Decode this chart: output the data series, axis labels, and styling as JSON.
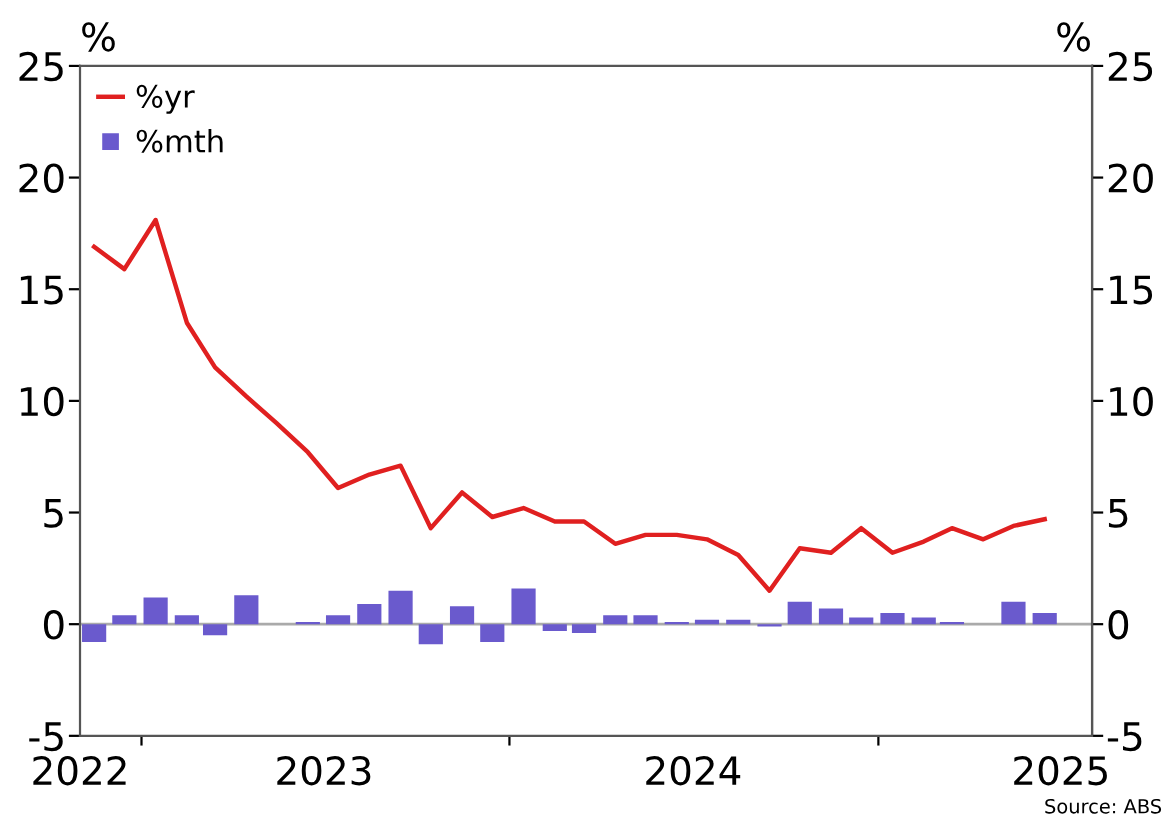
{
  "chart_data": {
    "type": "line",
    "ylabel": "%",
    "y2label": "%",
    "x": [
      "2022-11-15",
      "2022-12-15",
      "2023-01-15",
      "2023-02-15",
      "2023-03-15",
      "2023-04-15",
      "2023-05-15",
      "2023-06-15",
      "2023-07-15",
      "2023-08-15",
      "2023-09-15",
      "2023-10-15",
      "2023-11-15",
      "2023-12-15",
      "2024-01-15",
      "2024-02-15",
      "2024-03-15",
      "2024-04-15",
      "2024-05-15",
      "2024-06-15",
      "2024-07-15",
      "2024-08-15",
      "2024-09-15",
      "2024-10-15",
      "2024-11-15",
      "2024-12-15",
      "2025-01-15",
      "2025-02-15",
      "2025-03-15",
      "2025-04-15",
      "2025-05-15",
      "2025-06-15"
    ],
    "series": [
      {
        "name": "%yr",
        "color": "#e02020",
        "values": [
          16.9,
          15.9,
          18.1,
          13.5,
          11.5,
          10.2,
          9.0,
          7.7,
          6.1,
          6.7,
          7.1,
          4.3,
          5.9,
          4.8,
          5.2,
          4.6,
          4.6,
          3.6,
          4.0,
          4.0,
          3.8,
          3.1,
          1.5,
          3.4,
          3.2,
          4.3,
          3.2,
          3.7,
          4.3,
          3.8,
          4.4,
          4.7
        ]
      },
      {
        "name": "%mth",
        "type": "bar",
        "color": "#6a5acd",
        "values": [
          -0.8,
          0.4,
          1.2,
          0.4,
          -0.5,
          1.3,
          0.0,
          0.1,
          0.4,
          0.9,
          1.5,
          -0.9,
          0.8,
          -0.8,
          1.6,
          -0.3,
          -0.4,
          0.4,
          0.4,
          0.1,
          0.2,
          0.2,
          -0.1,
          1.0,
          0.7,
          0.3,
          0.5,
          0.3,
          0.1,
          0.0,
          1.0,
          0.5
        ]
      }
    ],
    "xlim": [
      "2022-11-01",
      "2025-08-01"
    ],
    "xticks": [
      {
        "value": "2022-11-01",
        "label": "2022"
      },
      {
        "value": "2023-01-01",
        "label": null
      },
      {
        "value": "2023-07-01",
        "label": "2023"
      },
      {
        "value": "2024-01-01",
        "label": null
      },
      {
        "value": "2024-07-01",
        "label": "2024"
      },
      {
        "value": "2025-01-01",
        "label": null
      },
      {
        "value": "2025-07-01",
        "label": "2025"
      }
    ],
    "ylim": [
      -5,
      25
    ],
    "yticks": [
      -5,
      0,
      5,
      10,
      15,
      20,
      25
    ],
    "y2lim": [
      -5,
      25
    ],
    "y2ticks": [
      -5,
      0,
      5,
      10,
      15,
      20,
      25
    ],
    "ref_lines": [
      {
        "axis": "y",
        "value": 0,
        "color": "#aaaaaa"
      }
    ],
    "legend": "top left",
    "annotations": [
      "Source: ABS"
    ]
  }
}
